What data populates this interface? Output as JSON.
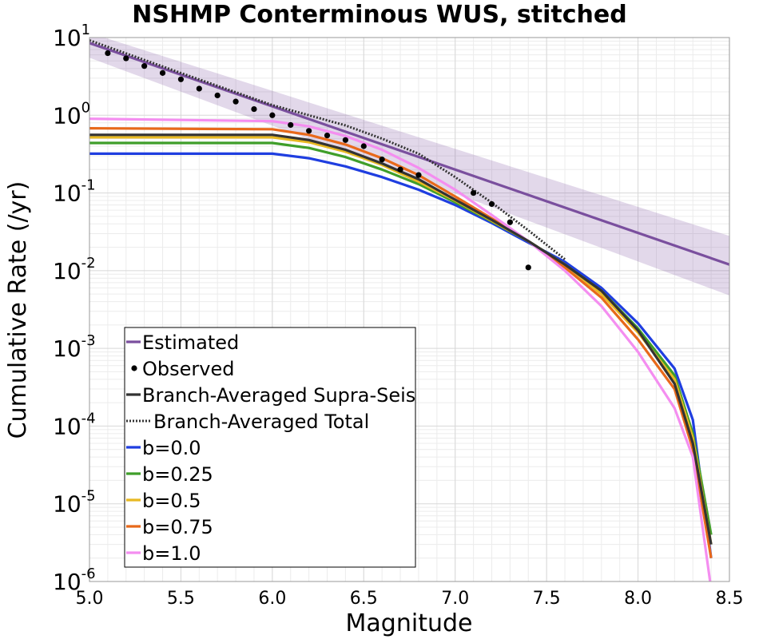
{
  "chart_data": {
    "type": "line",
    "title": "NSHMP Conterminous WUS, stitched",
    "xlabel": "Magnitude",
    "ylabel": "Cumulative Rate (/yr)",
    "xlim": [
      5.0,
      8.5
    ],
    "ylim": [
      1e-06,
      10
    ],
    "y_scale": "log",
    "grid": true,
    "legend_position": "lower-left",
    "x_ticks": [
      "5.0",
      "5.5",
      "6.0",
      "6.5",
      "7.0",
      "7.5",
      "8.0",
      "8.5"
    ],
    "y_ticks": [
      {
        "base": "10",
        "exp": "1",
        "value": 10
      },
      {
        "base": "10",
        "exp": "0",
        "value": 1
      },
      {
        "base": "10",
        "exp": "-1",
        "value": 0.1
      },
      {
        "base": "10",
        "exp": "-2",
        "value": 0.01
      },
      {
        "base": "10",
        "exp": "-3",
        "value": 0.001
      },
      {
        "base": "10",
        "exp": "-4",
        "value": 0.0001
      },
      {
        "base": "10",
        "exp": "-5",
        "value": 1e-05
      },
      {
        "base": "10",
        "exp": "-6",
        "value": 1e-06
      }
    ],
    "series": [
      {
        "name": "Estimated",
        "style": "line",
        "color": "#7a4f9e",
        "x": [
          5.0,
          8.5
        ],
        "y": [
          8.5,
          0.012
        ],
        "band_lower": [
          5.5,
          0.0048
        ],
        "band_upper": [
          11.5,
          0.028
        ]
      },
      {
        "name": "Observed",
        "style": "points",
        "color": "#000000",
        "x": [
          5.1,
          5.2,
          5.3,
          5.4,
          5.5,
          5.6,
          5.7,
          5.8,
          5.9,
          6.0,
          6.1,
          6.2,
          6.3,
          6.4,
          6.5,
          6.6,
          6.7,
          6.8,
          7.1,
          7.2,
          7.3,
          7.4
        ],
        "y": [
          6.3,
          5.4,
          4.3,
          3.5,
          2.9,
          2.2,
          1.8,
          1.5,
          1.2,
          1.0,
          0.75,
          0.63,
          0.55,
          0.48,
          0.4,
          0.27,
          0.2,
          0.17,
          0.1,
          0.072,
          0.042,
          0.011
        ]
      },
      {
        "name": "Branch-Averaged Supra-Seis",
        "style": "line",
        "color": "#333333",
        "x": [
          5.0,
          6.0,
          6.2,
          6.4,
          6.6,
          6.8,
          7.0,
          7.2,
          7.4,
          7.6,
          7.8,
          8.0,
          8.2,
          8.3,
          8.4
        ],
        "y": [
          0.56,
          0.56,
          0.48,
          0.36,
          0.24,
          0.15,
          0.082,
          0.045,
          0.024,
          0.012,
          0.0055,
          0.0017,
          0.00035,
          6e-05,
          3e-06
        ]
      },
      {
        "name": "Branch-Averaged Total",
        "style": "dotted",
        "color": "#333333",
        "x": [
          5.0,
          5.5,
          6.0,
          6.2,
          6.4,
          6.6,
          6.8,
          7.0,
          7.2,
          7.4,
          7.6
        ],
        "y": [
          9.2,
          3.5,
          1.35,
          1.0,
          0.74,
          0.5,
          0.32,
          0.16,
          0.075,
          0.033,
          0.014
        ]
      },
      {
        "name": "b=0.0",
        "style": "line",
        "color": "#1f3ee0",
        "x": [
          5.0,
          6.0,
          6.2,
          6.4,
          6.6,
          6.8,
          7.0,
          7.2,
          7.4,
          7.6,
          7.8,
          8.0,
          8.2,
          8.3,
          8.4
        ],
        "y": [
          0.32,
          0.32,
          0.28,
          0.22,
          0.16,
          0.11,
          0.07,
          0.041,
          0.023,
          0.013,
          0.006,
          0.0021,
          0.00055,
          0.00012,
          2e-06
        ]
      },
      {
        "name": "b=0.25",
        "style": "line",
        "color": "#3f9e2a",
        "x": [
          5.0,
          6.0,
          6.2,
          6.4,
          6.6,
          6.8,
          7.0,
          7.2,
          7.4,
          7.6,
          7.8,
          8.0,
          8.2,
          8.3,
          8.4
        ],
        "y": [
          0.44,
          0.44,
          0.38,
          0.29,
          0.2,
          0.13,
          0.076,
          0.043,
          0.024,
          0.012,
          0.0055,
          0.0018,
          0.00045,
          8e-05,
          4e-06
        ]
      },
      {
        "name": "b=0.5",
        "style": "line",
        "color": "#e8b922",
        "x": [
          5.0,
          6.0,
          6.2,
          6.4,
          6.6,
          6.8,
          7.0,
          7.2,
          7.4,
          7.6,
          7.8,
          8.0,
          8.2,
          8.3,
          8.4
        ],
        "y": [
          0.52,
          0.52,
          0.45,
          0.34,
          0.23,
          0.14,
          0.08,
          0.044,
          0.024,
          0.012,
          0.005,
          0.0016,
          0.0004,
          7e-05,
          3e-06
        ]
      },
      {
        "name": "b=0.75",
        "style": "line",
        "color": "#e8691a",
        "x": [
          5.0,
          6.0,
          6.2,
          6.4,
          6.6,
          6.8,
          7.0,
          7.2,
          7.4,
          7.6,
          7.8,
          8.0,
          8.2,
          8.3,
          8.4
        ],
        "y": [
          0.68,
          0.66,
          0.56,
          0.42,
          0.28,
          0.17,
          0.09,
          0.047,
          0.024,
          0.011,
          0.0045,
          0.0013,
          0.0003,
          5e-05,
          2e-06
        ]
      },
      {
        "name": "b=1.0",
        "style": "line",
        "color": "#f48ef0",
        "x": [
          5.0,
          6.0,
          6.2,
          6.4,
          6.6,
          6.8,
          7.0,
          7.2,
          7.4,
          7.6,
          7.8,
          8.0,
          8.2,
          8.3,
          8.4
        ],
        "y": [
          0.9,
          0.84,
          0.72,
          0.54,
          0.36,
          0.21,
          0.11,
          0.052,
          0.024,
          0.01,
          0.0035,
          0.0009,
          0.00017,
          4e-05,
          8e-07
        ]
      }
    ]
  }
}
